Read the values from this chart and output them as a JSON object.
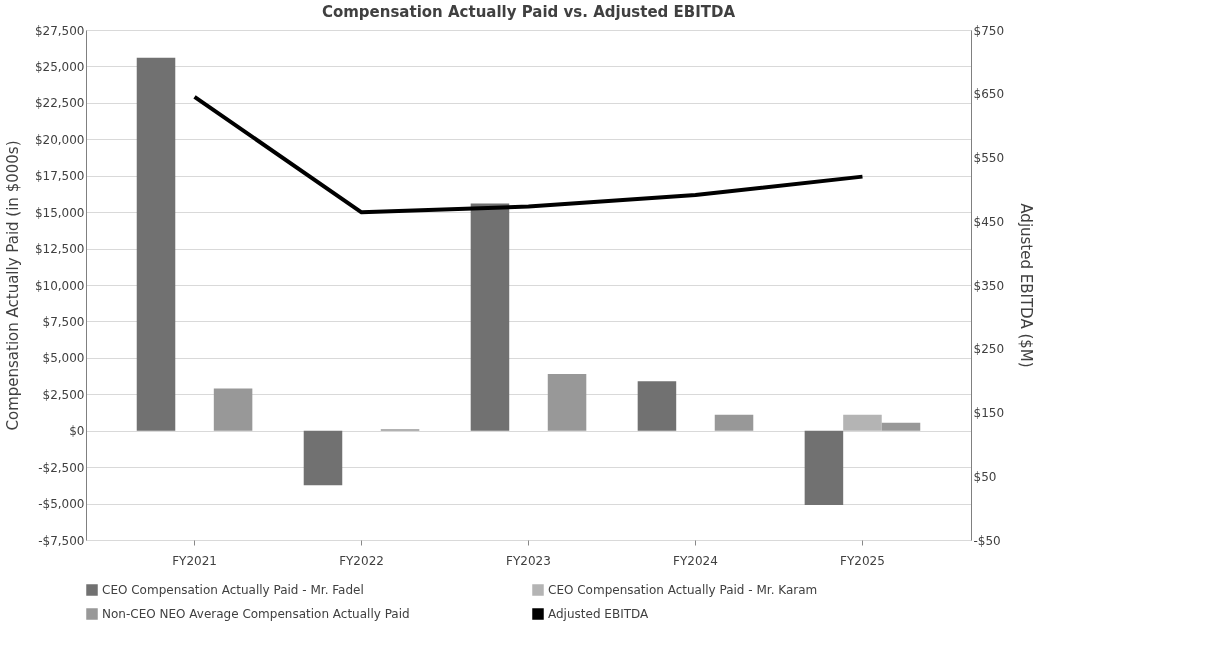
{
  "chart_data": {
    "type": "bar",
    "title": "Compensation Actually Paid vs. Adjusted EBITDA",
    "xlabel": null,
    "ylabel": "Compensation Actually Paid (in $000s)",
    "y2label": "Adjusted EBITDA ($M)",
    "categories": [
      "FY2021",
      "FY2022",
      "FY2023",
      "FY2024",
      "FY2025"
    ],
    "series": [
      {
        "name": "CEO Compensation Actually Paid - Mr. Fadel",
        "color": "#717171",
        "values": [
          25600,
          -3750,
          15600,
          3400,
          -5100
        ]
      },
      {
        "name": "CEO Compensation Actually Paid - Mr. Karam",
        "color": "#b4b4b4",
        "values": [
          null,
          null,
          null,
          null,
          1100
        ]
      },
      {
        "name": "Non-CEO NEO Average Compensation Actually Paid",
        "color": "#989898",
        "values": [
          2900,
          100,
          3900,
          1100,
          550
        ]
      },
      {
        "name": "Adjusted EBITDA",
        "type": "line",
        "axis": "y2",
        "color": "#000000",
        "values": [
          645,
          464,
          473,
          491,
          520
        ]
      }
    ],
    "ylim": [
      -7500,
      27500
    ],
    "yticks": [
      {
        "value": -7500,
        "label": "-$7,500"
      },
      {
        "value": -5000,
        "label": "-$5,000"
      },
      {
        "value": -2500,
        "label": "-$2,500"
      },
      {
        "value": 0,
        "label": "$0"
      },
      {
        "value": 2500,
        "label": "$2,500"
      },
      {
        "value": 5000,
        "label": "$5,000"
      },
      {
        "value": 7500,
        "label": "$7,500"
      },
      {
        "value": 10000,
        "label": "$10,000"
      },
      {
        "value": 12500,
        "label": "$12,500"
      },
      {
        "value": 15000,
        "label": "$15,000"
      },
      {
        "value": 17500,
        "label": "$17,500"
      },
      {
        "value": 20000,
        "label": "$20,000"
      },
      {
        "value": 22500,
        "label": "$22,500"
      },
      {
        "value": 25000,
        "label": "$25,000"
      },
      {
        "value": 27500,
        "label": "$27,500"
      }
    ],
    "y2lim": [
      -50,
      750
    ],
    "y2ticks": [
      {
        "value": -50,
        "label": "-$50"
      },
      {
        "value": 50,
        "label": "$50"
      },
      {
        "value": 150,
        "label": "$150"
      },
      {
        "value": 250,
        "label": "$250"
      },
      {
        "value": 350,
        "label": "$350"
      },
      {
        "value": 450,
        "label": "$450"
      },
      {
        "value": 550,
        "label": "$550"
      },
      {
        "value": 650,
        "label": "$650"
      },
      {
        "value": 750,
        "label": "$750"
      }
    ],
    "grid": "y",
    "legend": "bottom",
    "line_style": "solid",
    "marker": "none"
  }
}
